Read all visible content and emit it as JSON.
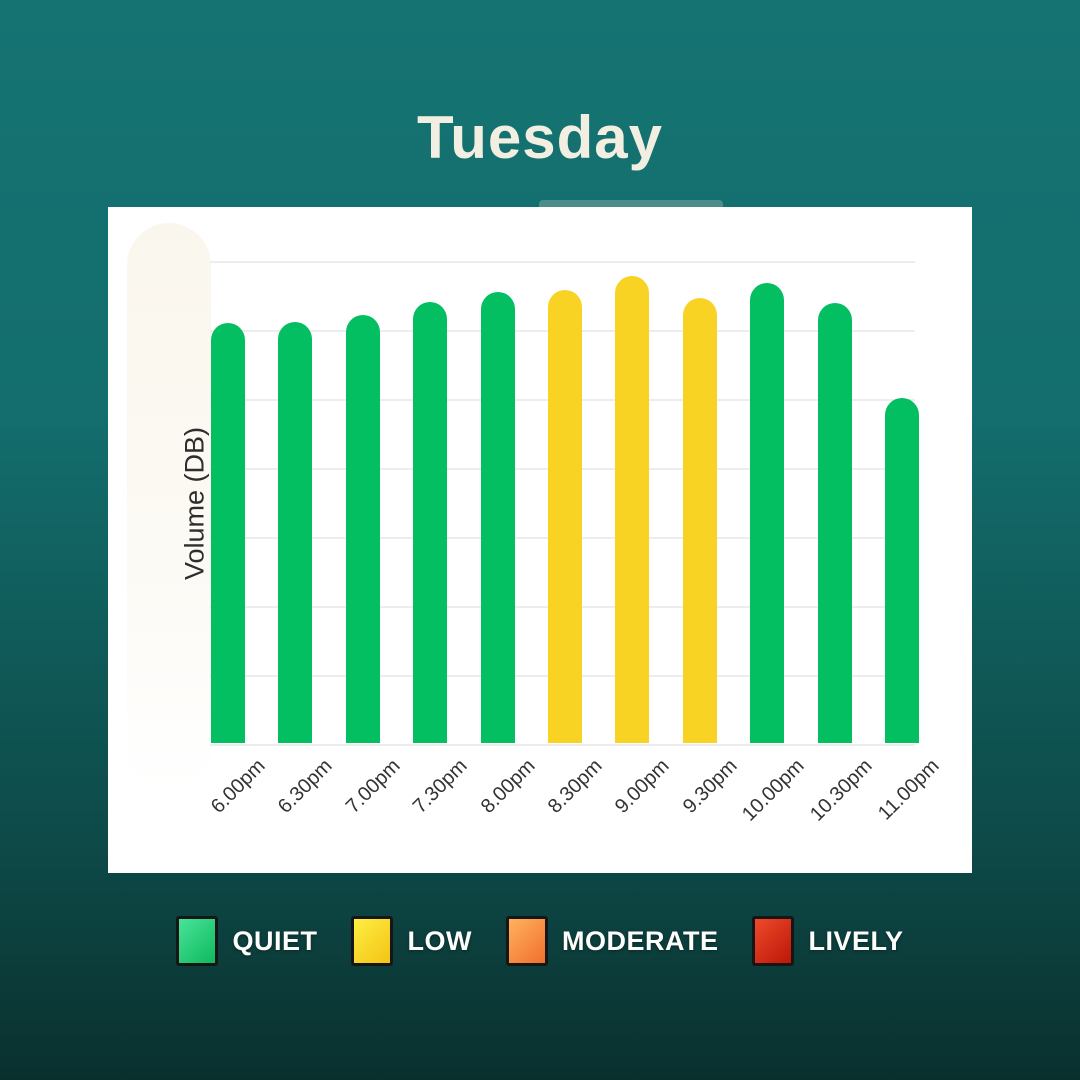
{
  "chart_data": {
    "type": "bar",
    "title": "Tuesday",
    "ylabel": "Volume (DB)",
    "categories": [
      "6.00pm",
      "6.30pm",
      "7.00pm",
      "7.30pm",
      "8.00pm",
      "8.30pm",
      "9.00pm",
      "9.30pm",
      "10.00pm",
      "10.30pm",
      "11.00pm"
    ],
    "series": [
      {
        "name": "Volume",
        "values": [
          420,
          421,
          428,
          441,
          451,
          453,
          467,
          445,
          460,
          440,
          345
        ]
      }
    ],
    "levels": [
      "quiet",
      "quiet",
      "quiet",
      "quiet",
      "quiet",
      "low",
      "low",
      "low",
      "quiet",
      "quiet",
      "quiet"
    ],
    "value_note": "no numeric y-axis ticks shown; values are relative bar heights (px)",
    "ylim": [
      0,
      536
    ],
    "grid": "horizontal gridlines only, light gray, no tick labels",
    "legend_position": "bottom, outside white card",
    "x_tick_rotation": -45
  },
  "legend": {
    "items": [
      {
        "label": "QUIET",
        "level": "quiet",
        "gradient_from": "#49e39a",
        "gradient_to": "#0eb95d"
      },
      {
        "label": "LOW",
        "level": "low",
        "gradient_from": "#ffee45",
        "gradient_to": "#f2c413"
      },
      {
        "label": "MODERATE",
        "level": "moderate",
        "gradient_from": "#ffb25e",
        "gradient_to": "#f06f2d"
      },
      {
        "label": "LIVELY",
        "level": "lively",
        "gradient_from": "#ef4a2a",
        "gradient_to": "#ba1708"
      }
    ]
  },
  "colors": {
    "background_top": "#157372",
    "background_bottom": "#0a302e",
    "card": "#ffffff",
    "bar_quiet": "#04be62",
    "bar_low": "#f9d324",
    "gridline": "#ededed",
    "title_text": "#f2efe2",
    "axis_text": "#333333",
    "accent_strip": "#4a8d89",
    "blob": "#faf6ec"
  }
}
